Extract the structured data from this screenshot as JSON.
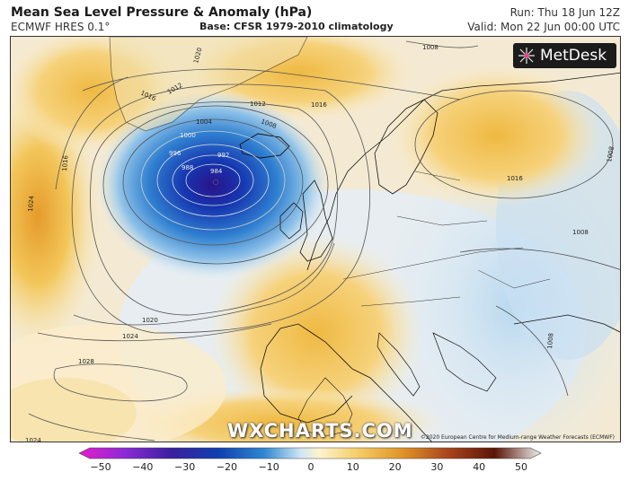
{
  "header": {
    "title": "Mean Sea Level Pressure & Anomaly (hPa)",
    "model": "ECMWF HRES 0.1°",
    "base": "Base: CFSR 1979-2010 climatology",
    "run": "Run: Thu 18 Jun 12Z",
    "valid": "Valid: Mon 22 Jun 00:00 UTC"
  },
  "logo": {
    "text": "MetDesk",
    "icon": "metdesk-star-icon"
  },
  "watermark": "WXCHARTS.COM",
  "copyright": "©2020 European Centre for Medium-range Weather Forecasts (ECMWF)",
  "isobars": [
    "984",
    "988",
    "992",
    "996",
    "1000",
    "1004",
    "1008",
    "1012",
    "1016",
    "1020",
    "1024",
    "1028"
  ],
  "isobar_labels": {
    "l1008a": "1008",
    "l1020b": "1020",
    "l1016a": "1016",
    "l1012a": "1012",
    "l1004": "1004",
    "l1008b": "1008",
    "l1012b": "1012",
    "l1016b": "1016",
    "l1000": "1000",
    "l996": "996",
    "l992": "992",
    "l988": "988",
    "l984": "984",
    "l1016c": "1016",
    "l1024a": "1024",
    "l1020a": "1020",
    "l1024b": "1024",
    "l1028": "1028",
    "l1016d": "1016",
    "l1008c": "1008",
    "l1008d": "1008",
    "l1008e": "1008",
    "l1024c": "1024"
  },
  "colorbar": {
    "ticks": [
      "−50",
      "−40",
      "−30",
      "−20",
      "−10",
      "0",
      "10",
      "20",
      "30",
      "40",
      "50"
    ],
    "colors": [
      "#e51dc9",
      "#8a2bd6",
      "#3a1f9e",
      "#0f3fb0",
      "#2f86d0",
      "#a9d3ec",
      "#fdf3cf",
      "#f6cf6a",
      "#e09326",
      "#a9441c",
      "#5a1508"
    ]
  }
}
